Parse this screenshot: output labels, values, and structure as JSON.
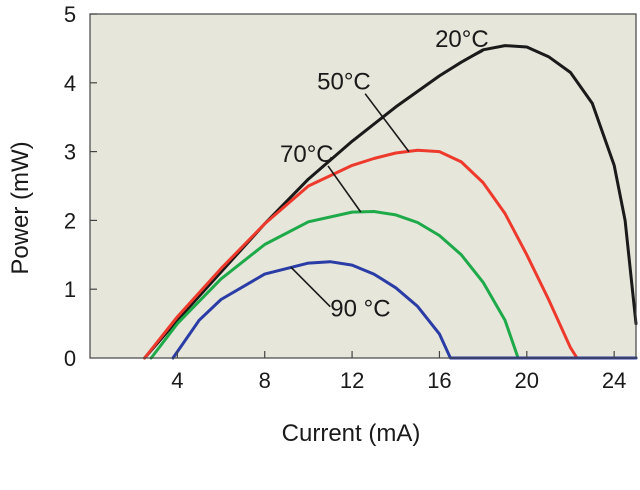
{
  "chart_data": {
    "type": "line",
    "xlabel": "Current (mA)",
    "ylabel": "Power (mW)",
    "xlim": [
      0,
      25
    ],
    "ylim": [
      0,
      5
    ],
    "xticks": [
      4,
      8,
      12,
      16,
      20,
      24
    ],
    "xtick_labels": [
      "4",
      "8",
      "12",
      "16",
      "20",
      "24"
    ],
    "yticks": [
      0,
      1,
      2,
      3,
      4,
      5
    ],
    "ytick_labels": [
      "0",
      "1",
      "2",
      "3",
      "4",
      "5"
    ],
    "origin_label": "0",
    "grid": false,
    "plot_background": "#e6e6da",
    "series": [
      {
        "name": "20°C",
        "color": "#1a1a1a",
        "x": [
          2.5,
          4,
          6,
          8,
          10,
          12,
          14,
          16,
          17,
          18,
          19,
          20,
          21,
          22,
          23,
          24,
          24.5,
          25
        ],
        "y": [
          0,
          0.55,
          1.25,
          1.95,
          2.6,
          3.15,
          3.65,
          4.1,
          4.3,
          4.48,
          4.54,
          4.52,
          4.38,
          4.15,
          3.7,
          2.8,
          2.0,
          0.5
        ]
      },
      {
        "name": "50°C",
        "color": "#ee3a2c",
        "x": [
          2.5,
          4,
          6,
          8,
          10,
          12,
          13,
          14,
          15,
          16,
          17,
          18,
          19,
          20,
          21,
          22,
          22.3,
          25
        ],
        "y": [
          0,
          0.6,
          1.3,
          1.95,
          2.5,
          2.8,
          2.9,
          2.98,
          3.02,
          3.0,
          2.85,
          2.55,
          2.1,
          1.5,
          0.85,
          0.15,
          0,
          0
        ]
      },
      {
        "name": "70°C",
        "color": "#1faa4a",
        "x": [
          2.8,
          4,
          6,
          8,
          10,
          12,
          13,
          14,
          15,
          16,
          17,
          18,
          19,
          19.6,
          25
        ],
        "y": [
          0,
          0.5,
          1.15,
          1.65,
          1.98,
          2.12,
          2.13,
          2.08,
          1.97,
          1.78,
          1.5,
          1.1,
          0.55,
          0,
          0
        ]
      },
      {
        "name": "90°C",
        "color": "#2a3ca6",
        "x": [
          3.8,
          5,
          6,
          8,
          10,
          11,
          12,
          13,
          14,
          15,
          16,
          16.5,
          25
        ],
        "y": [
          0,
          0.55,
          0.85,
          1.22,
          1.38,
          1.4,
          1.35,
          1.22,
          1.02,
          0.75,
          0.35,
          0,
          0
        ]
      }
    ],
    "annotations": [
      {
        "series": 0,
        "text": "20°C",
        "text_x": 15.8,
        "text_y": 4.52,
        "point_x": 17.0,
        "point_y": 4.3
      },
      {
        "series": 1,
        "text": "50°C",
        "text_x": 10.4,
        "text_y": 3.9,
        "point_x": 14.6,
        "point_y": 3.0
      },
      {
        "series": 2,
        "text": "70°C",
        "text_x": 8.7,
        "text_y": 2.85,
        "point_x": 12.4,
        "point_y": 2.12
      },
      {
        "series": 3,
        "text": "90 °C",
        "text_x": 11.0,
        "text_y": 0.6,
        "point_x": 9.2,
        "point_y": 1.32
      }
    ]
  }
}
